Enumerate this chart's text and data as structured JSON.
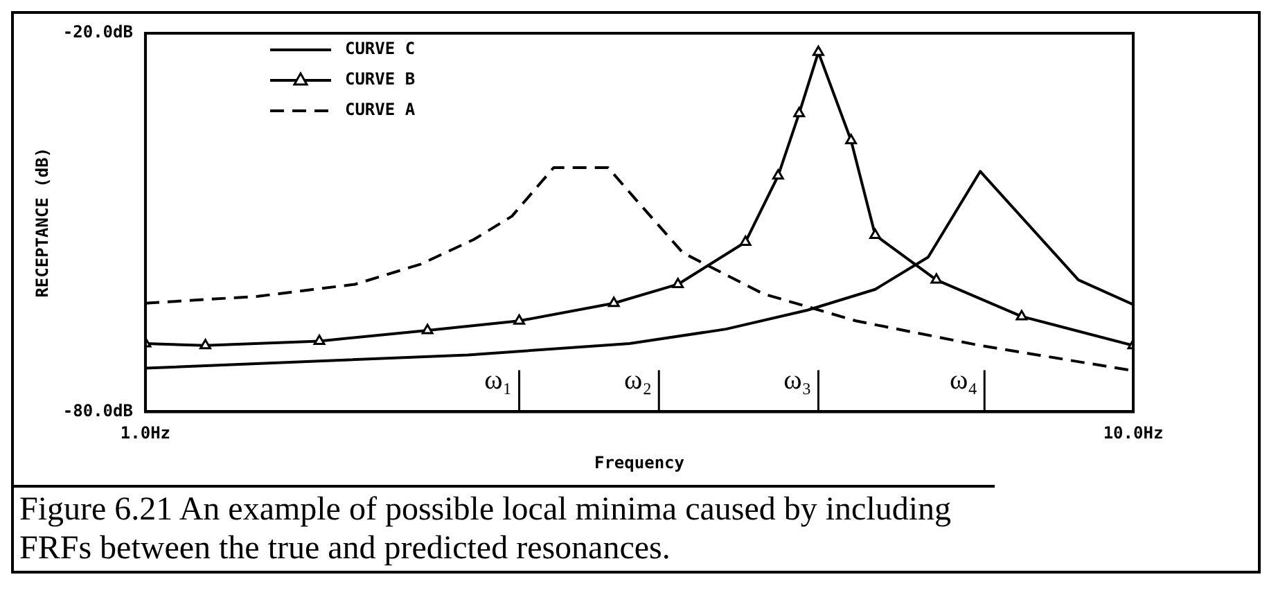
{
  "chart_data": {
    "type": "line",
    "xlabel": "Frequency",
    "ylabel": "RECEPTANCE (dB)",
    "log": "x",
    "xlim": [
      1,
      10
    ],
    "xticks": [
      {
        "value": 1,
        "label": "1.0Hz"
      },
      {
        "value": 10,
        "label": "10.0Hz"
      }
    ],
    "ylim": [
      -80,
      -20
    ],
    "yticks": [
      {
        "value": -80,
        "label": "-80.0dB"
      },
      {
        "value": -20,
        "label": "-20.0dB"
      }
    ],
    "grid": false,
    "legend": "top left",
    "series": [
      {
        "name": "CURVE C",
        "color": "#000000",
        "line_style": "solid",
        "marker": "none",
        "x": [
          1,
          2.12,
          3.09,
          3.87,
          4.68,
          5.48,
          6.2,
          7.0,
          8.8,
          10
        ],
        "values": [
          -73.1,
          -71.0,
          -69.2,
          -66.9,
          -63.9,
          -60.6,
          -55.5,
          -41.9,
          -59.1,
          -63.0
        ]
      },
      {
        "name": "CURVE B",
        "color": "#000000",
        "line_style": "solid",
        "marker": "triangle",
        "x": [
          1,
          1.15,
          1.5,
          1.93,
          2.39,
          2.98,
          3.46,
          4.05,
          4.37,
          4.59,
          4.8,
          5.18,
          5.48,
          6.32,
          7.71,
          10
        ],
        "values": [
          -69.2,
          -69.5,
          -68.8,
          -67.1,
          -65.6,
          -62.8,
          -59.8,
          -53.1,
          -42.6,
          -32.7,
          -23.0,
          -37.0,
          -52.0,
          -59.1,
          -64.9,
          -69.5
        ]
      },
      {
        "name": "CURVE A",
        "color": "#000000",
        "line_style": "dashed",
        "marker": "none",
        "x": [
          1,
          1.3,
          1.63,
          1.9,
          2.15,
          2.35,
          2.59,
          2.94,
          3.13,
          3.5,
          4.22,
          5.24,
          7.0,
          10
        ],
        "values": [
          -62.8,
          -61.7,
          -59.8,
          -56.6,
          -52.7,
          -49.0,
          -41.3,
          -41.3,
          -46.2,
          -54.8,
          -61.3,
          -65.6,
          -69.5,
          -73.5
        ]
      }
    ],
    "ref_lines": [
      {
        "axis": "x",
        "value": 2.39,
        "label": "ω₁"
      },
      {
        "axis": "x",
        "value": 3.31,
        "label": "ω₂"
      },
      {
        "axis": "x",
        "value": 4.8,
        "label": "ω₃"
      },
      {
        "axis": "x",
        "value": 7.07,
        "label": "ω₄"
      }
    ],
    "annotations": [
      "Figure 6.21 An example of possible local minima caused by including FRFs between the true and predicted resonances."
    ]
  }
}
